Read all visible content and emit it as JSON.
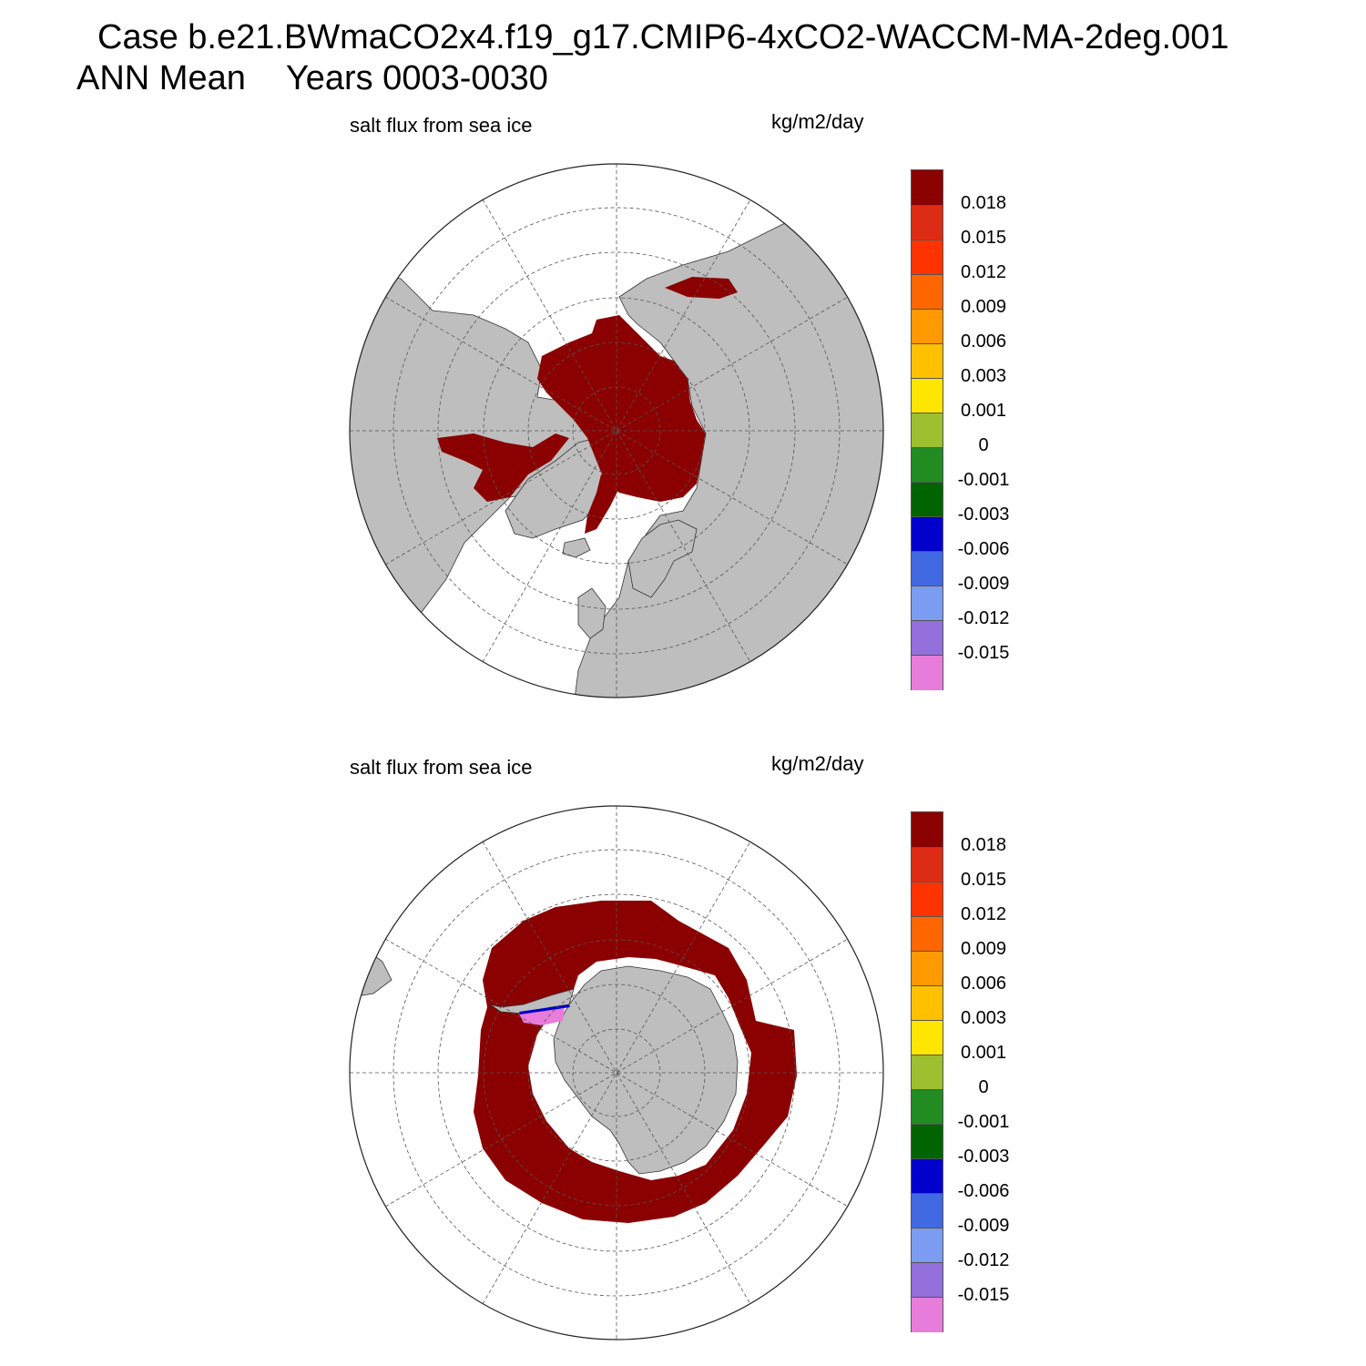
{
  "title": {
    "case": "Case b.e21.BWmaCO2x4.f19_g17.CMIP6-4xCO2-WACCM-MA-2deg.001",
    "period": "ANN Mean",
    "years": "Years 0003-0030"
  },
  "colors": {
    "land": "#bebebe",
    "ocean": "#ffffff",
    "ice": "#8b0000",
    "grid": "#555555"
  },
  "colorbar": {
    "colors": [
      "#8b0000",
      "#dd2c16",
      "#ff3300",
      "#ff6600",
      "#ff9900",
      "#ffc000",
      "#ffe600",
      "#9dbf30",
      "#228b22",
      "#006400",
      "#0000cd",
      "#4169e1",
      "#7b9cf0",
      "#9370db",
      "#e87cdb"
    ],
    "labels": [
      "0.018",
      "0.015",
      "0.012",
      "0.009",
      "0.006",
      "0.003",
      "0.001",
      "0",
      "-0.001",
      "-0.003",
      "-0.006",
      "-0.009",
      "-0.012",
      "-0.015"
    ]
  },
  "panels": [
    {
      "id": "north",
      "hemisphere": "north",
      "variable_label": "salt flux from sea ice",
      "units": "kg/m2/day"
    },
    {
      "id": "south",
      "hemisphere": "south",
      "variable_label": "salt flux from sea ice",
      "units": "kg/m2/day"
    }
  ]
}
